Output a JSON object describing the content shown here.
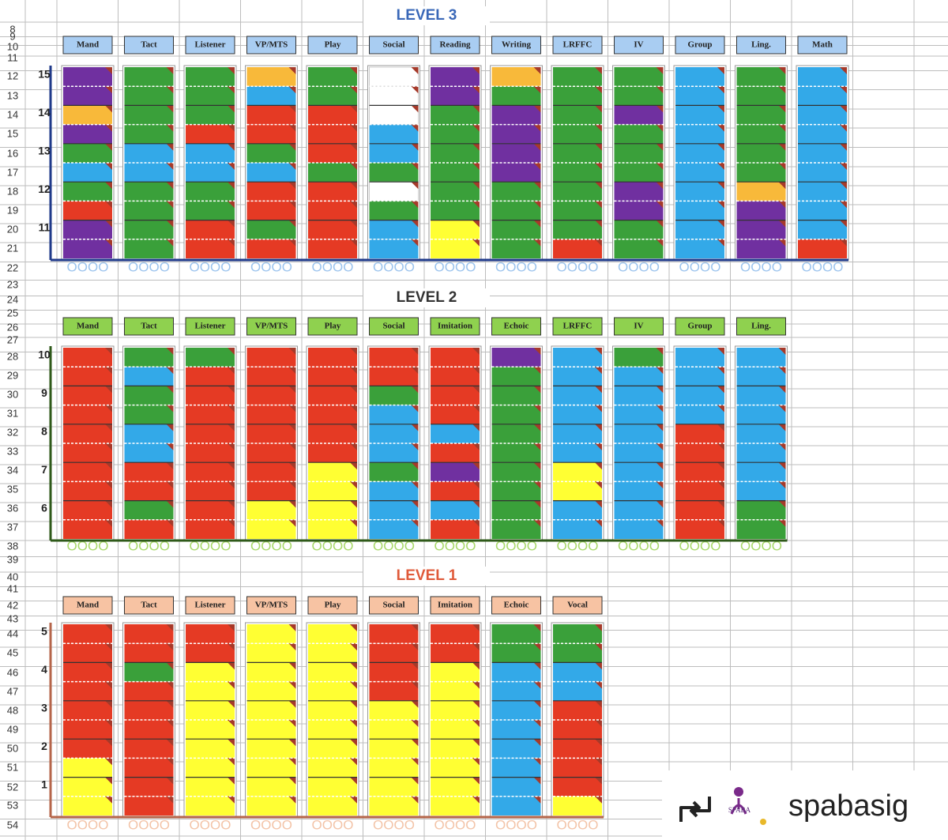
{
  "row_numbers": [
    8,
    9,
    10,
    11,
    12,
    13,
    14,
    15,
    16,
    17,
    18,
    19,
    20,
    21,
    22,
    23,
    24,
    25,
    26,
    27,
    28,
    29,
    30,
    31,
    32,
    33,
    34,
    35,
    36,
    37,
    38,
    39,
    40,
    41,
    42,
    43,
    44,
    45,
    46,
    47,
    48,
    49,
    50,
    51,
    52,
    53,
    54
  ],
  "levels": [
    {
      "title": "LEVEL 3",
      "title_color": "#3a68b8",
      "header_color": "#a9cdf2",
      "frame_color": "#1f3a8a",
      "circle_color": "#9cc4ee",
      "circles": "OOOO",
      "milestones": [
        "15",
        "14",
        "13",
        "12",
        "11"
      ],
      "columns": [
        {
          "name": "Mand",
          "cells": [
            "#7030a0",
            "#7030a0",
            "#f8b93a",
            "#7030a0",
            "#3aa03a",
            "#33a9e8",
            "#3aa03a",
            "#e53a24",
            "#7030a0",
            "#7030a0"
          ]
        },
        {
          "name": "Tact",
          "cells": [
            "#3aa03a",
            "#3aa03a",
            "#3aa03a",
            "#3aa03a",
            "#33a9e8",
            "#33a9e8",
            "#3aa03a",
            "#3aa03a",
            "#3aa03a",
            "#3aa03a"
          ]
        },
        {
          "name": "Listener",
          "cells": [
            "#3aa03a",
            "#3aa03a",
            "#3aa03a",
            "#e53a24",
            "#33a9e8",
            "#33a9e8",
            "#3aa03a",
            "#3aa03a",
            "#e53a24",
            "#e53a24"
          ]
        },
        {
          "name": "VP/MTS",
          "cells": [
            "#f8b93a",
            "#33a9e8",
            "#e53a24",
            "#e53a24",
            "#3aa03a",
            "#33a9e8",
            "#e53a24",
            "#e53a24",
            "#3aa03a",
            "#e53a24"
          ]
        },
        {
          "name": "Play",
          "cells": [
            "#3aa03a",
            "#3aa03a",
            "#e53a24",
            "#e53a24",
            "#e53a24",
            "#3aa03a",
            "#e53a24",
            "#e53a24",
            "#e53a24",
            "#e53a24"
          ]
        },
        {
          "name": "Social",
          "cells": [
            "#ffffff",
            "#ffffff",
            "#ffffff",
            "#33a9e8",
            "#33a9e8",
            "#3aa03a",
            "#ffffff",
            "#3aa03a",
            "#33a9e8",
            "#33a9e8"
          ]
        },
        {
          "name": "Reading",
          "cells": [
            "#7030a0",
            "#7030a0",
            "#3aa03a",
            "#3aa03a",
            "#3aa03a",
            "#3aa03a",
            "#3aa03a",
            "#3aa03a",
            "#ffff33",
            "#ffff33"
          ]
        },
        {
          "name": "Writing",
          "cells": [
            "#f8b93a",
            "#3aa03a",
            "#7030a0",
            "#7030a0",
            "#7030a0",
            "#7030a0",
            "#3aa03a",
            "#3aa03a",
            "#3aa03a",
            "#3aa03a"
          ]
        },
        {
          "name": "LRFFC",
          "cells": [
            "#3aa03a",
            "#3aa03a",
            "#3aa03a",
            "#3aa03a",
            "#3aa03a",
            "#3aa03a",
            "#3aa03a",
            "#3aa03a",
            "#3aa03a",
            "#e53a24"
          ]
        },
        {
          "name": "IV",
          "cells": [
            "#3aa03a",
            "#3aa03a",
            "#7030a0",
            "#3aa03a",
            "#3aa03a",
            "#3aa03a",
            "#7030a0",
            "#7030a0",
            "#3aa03a",
            "#3aa03a"
          ]
        },
        {
          "name": "Group",
          "cells": [
            "#33a9e8",
            "#33a9e8",
            "#33a9e8",
            "#33a9e8",
            "#33a9e8",
            "#33a9e8",
            "#33a9e8",
            "#33a9e8",
            "#33a9e8",
            "#33a9e8"
          ]
        },
        {
          "name": "Ling.",
          "cells": [
            "#3aa03a",
            "#3aa03a",
            "#3aa03a",
            "#3aa03a",
            "#3aa03a",
            "#3aa03a",
            "#f8b93a",
            "#7030a0",
            "#7030a0",
            "#7030a0"
          ]
        },
        {
          "name": "Math",
          "cells": [
            "#33a9e8",
            "#33a9e8",
            "#33a9e8",
            "#33a9e8",
            "#33a9e8",
            "#33a9e8",
            "#33a9e8",
            "#33a9e8",
            "#33a9e8",
            "#e53a24"
          ]
        }
      ]
    },
    {
      "title": "LEVEL 2",
      "title_color": "#333333",
      "header_color": "#8fd14f",
      "frame_color": "#2f5a1a",
      "circle_color": "#a8d86a",
      "circles": "OOOO",
      "milestones": [
        "10",
        "9",
        "8",
        "7",
        "6"
      ],
      "columns": [
        {
          "name": "Mand",
          "cells": [
            "#e53a24",
            "#e53a24",
            "#e53a24",
            "#e53a24",
            "#e53a24",
            "#e53a24",
            "#e53a24",
            "#e53a24",
            "#e53a24",
            "#e53a24"
          ]
        },
        {
          "name": "Tact",
          "cells": [
            "#3aa03a",
            "#33a9e8",
            "#3aa03a",
            "#3aa03a",
            "#33a9e8",
            "#33a9e8",
            "#e53a24",
            "#e53a24",
            "#3aa03a",
            "#e53a24"
          ]
        },
        {
          "name": "Listener",
          "cells": [
            "#3aa03a",
            "#e53a24",
            "#e53a24",
            "#e53a24",
            "#e53a24",
            "#e53a24",
            "#e53a24",
            "#e53a24",
            "#e53a24",
            "#e53a24"
          ]
        },
        {
          "name": "VP/MTS",
          "cells": [
            "#e53a24",
            "#e53a24",
            "#e53a24",
            "#e53a24",
            "#e53a24",
            "#e53a24",
            "#e53a24",
            "#e53a24",
            "#ffff33",
            "#ffff33"
          ]
        },
        {
          "name": "Play",
          "cells": [
            "#e53a24",
            "#e53a24",
            "#e53a24",
            "#e53a24",
            "#e53a24",
            "#e53a24",
            "#ffff33",
            "#ffff33",
            "#ffff33",
            "#ffff33"
          ]
        },
        {
          "name": "Social",
          "cells": [
            "#e53a24",
            "#e53a24",
            "#3aa03a",
            "#33a9e8",
            "#33a9e8",
            "#33a9e8",
            "#3aa03a",
            "#33a9e8",
            "#33a9e8",
            "#33a9e8"
          ]
        },
        {
          "name": "Imitation",
          "cells": [
            "#e53a24",
            "#e53a24",
            "#e53a24",
            "#e53a24",
            "#33a9e8",
            "#e53a24",
            "#7030a0",
            "#e53a24",
            "#33a9e8",
            "#e53a24"
          ]
        },
        {
          "name": "Echoic",
          "cells": [
            "#7030a0",
            "#3aa03a",
            "#3aa03a",
            "#3aa03a",
            "#3aa03a",
            "#3aa03a",
            "#3aa03a",
            "#3aa03a",
            "#3aa03a",
            "#3aa03a"
          ]
        },
        {
          "name": "LRFFC",
          "cells": [
            "#33a9e8",
            "#33a9e8",
            "#33a9e8",
            "#33a9e8",
            "#33a9e8",
            "#33a9e8",
            "#ffff33",
            "#ffff33",
            "#33a9e8",
            "#33a9e8"
          ]
        },
        {
          "name": "IV",
          "cells": [
            "#3aa03a",
            "#33a9e8",
            "#33a9e8",
            "#33a9e8",
            "#33a9e8",
            "#33a9e8",
            "#33a9e8",
            "#33a9e8",
            "#33a9e8",
            "#33a9e8"
          ]
        },
        {
          "name": "Group",
          "cells": [
            "#33a9e8",
            "#33a9e8",
            "#33a9e8",
            "#33a9e8",
            "#e53a24",
            "#e53a24",
            "#e53a24",
            "#e53a24",
            "#e53a24",
            "#e53a24"
          ]
        },
        {
          "name": "Ling.",
          "cells": [
            "#33a9e8",
            "#33a9e8",
            "#33a9e8",
            "#33a9e8",
            "#33a9e8",
            "#33a9e8",
            "#33a9e8",
            "#33a9e8",
            "#3aa03a",
            "#3aa03a"
          ]
        }
      ]
    },
    {
      "title": "LEVEL 1",
      "title_color": "#e05a3a",
      "header_color": "#f7c3a3",
      "frame_color": "#b5654a",
      "circle_color": "#f3c4a8",
      "circles": "OOOO",
      "milestones": [
        "5",
        "4",
        "3",
        "2",
        "1"
      ],
      "columns": [
        {
          "name": "Mand",
          "cells": [
            "#e53a24",
            "#e53a24",
            "#e53a24",
            "#e53a24",
            "#e53a24",
            "#e53a24",
            "#e53a24",
            "#ffff33",
            "#ffff33",
            "#ffff33"
          ]
        },
        {
          "name": "Tact",
          "cells": [
            "#e53a24",
            "#e53a24",
            "#3aa03a",
            "#e53a24",
            "#e53a24",
            "#e53a24",
            "#e53a24",
            "#e53a24",
            "#e53a24",
            "#e53a24"
          ]
        },
        {
          "name": "Listener",
          "cells": [
            "#e53a24",
            "#e53a24",
            "#ffff33",
            "#ffff33",
            "#ffff33",
            "#ffff33",
            "#ffff33",
            "#ffff33",
            "#ffff33",
            "#ffff33"
          ]
        },
        {
          "name": "VP/MTS",
          "cells": [
            "#ffff33",
            "#ffff33",
            "#ffff33",
            "#ffff33",
            "#ffff33",
            "#ffff33",
            "#ffff33",
            "#ffff33",
            "#ffff33",
            "#ffff33"
          ]
        },
        {
          "name": "Play",
          "cells": [
            "#ffff33",
            "#ffff33",
            "#ffff33",
            "#ffff33",
            "#ffff33",
            "#ffff33",
            "#ffff33",
            "#ffff33",
            "#ffff33",
            "#ffff33"
          ]
        },
        {
          "name": "Social",
          "cells": [
            "#e53a24",
            "#e53a24",
            "#e53a24",
            "#e53a24",
            "#ffff33",
            "#ffff33",
            "#ffff33",
            "#ffff33",
            "#ffff33",
            "#ffff33"
          ]
        },
        {
          "name": "Imitation",
          "cells": [
            "#e53a24",
            "#e53a24",
            "#ffff33",
            "#ffff33",
            "#ffff33",
            "#ffff33",
            "#ffff33",
            "#ffff33",
            "#ffff33",
            "#ffff33"
          ]
        },
        {
          "name": "Echoic",
          "cells": [
            "#3aa03a",
            "#3aa03a",
            "#33a9e8",
            "#33a9e8",
            "#33a9e8",
            "#33a9e8",
            "#33a9e8",
            "#33a9e8",
            "#33a9e8",
            "#33a9e8"
          ]
        },
        {
          "name": "Vocal",
          "cells": [
            "#3aa03a",
            "#3aa03a",
            "#33a9e8",
            "#33a9e8",
            "#e53a24",
            "#e53a24",
            "#e53a24",
            "#e53a24",
            "#e53a24",
            "#ffff33"
          ]
        }
      ]
    }
  ],
  "watermark": {
    "logo": "SPABA",
    "handle": "spabasig"
  }
}
